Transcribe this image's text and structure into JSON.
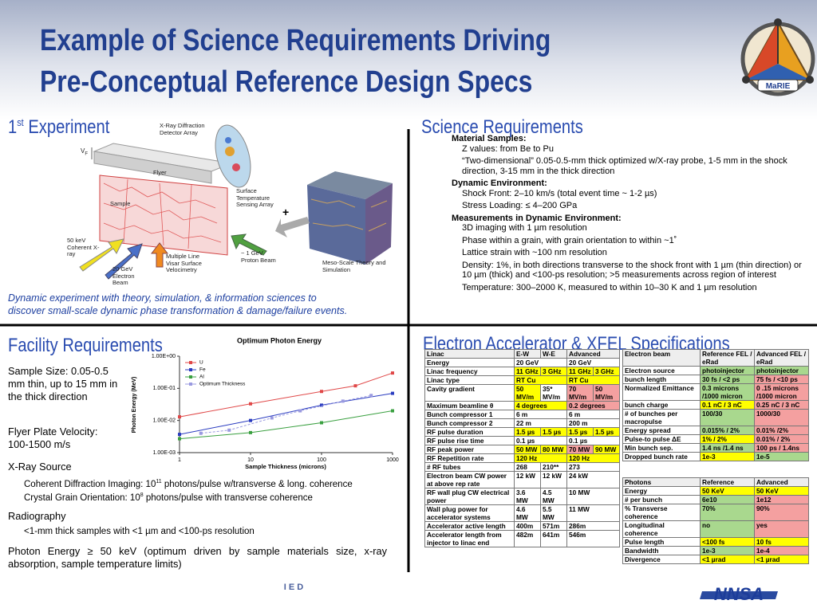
{
  "header": {
    "title_line1": "Example of Science Requirements Driving",
    "title_line2": "Pre-Conceptual Reference Design Specs",
    "logo_text": "MaRIE"
  },
  "experiment": {
    "title": {
      "main": "1",
      "sup": "st",
      "rest": " Experiment"
    },
    "vf": {
      "main": "V",
      "sub": "F"
    },
    "plus": "+",
    "labels": [
      "X-Ray Diffraction Detector Array",
      "Flyer",
      "Sample",
      "Surface Temperature Sensing Array",
      "50 keV Coherent X-ray",
      "20 GeV Electron Beam",
      "Multiple Line Visar Surface Velocimetry",
      "~ 1 GeV Proton Beam",
      "Meso-Scale Theory and Simulation"
    ],
    "caption": [
      "Dynamic experiment with theory, simulation, & information sciences to",
      "discover small-scale dynamic phase transformation & damage/failure events."
    ]
  },
  "science": {
    "title": "Science Requirements",
    "groups": [
      {
        "heading": "Material Samples:",
        "items": [
          "Z values: from Be to Pu",
          "“Two-dimensional” 0.05-0.5-mm thick optimized w/X-ray probe, 1-5 mm in the shock direction, 3-15 mm in the thick direction"
        ]
      },
      {
        "heading": "Dynamic Environment:",
        "items": [
          "Shock Front: 2–10 km/s (total event time ~ 1-2 µs)",
          "Stress Loading: ≤ 4–200 GPa"
        ]
      },
      {
        "heading": "Measurements in Dynamic Environment:",
        "items": [
          "3D imaging with 1 µm resolution",
          "Phase within a grain, with grain orientation to within ~1˚",
          "Lattice strain with ~100 nm resolution",
          "Density: 1%, in both directions transverse to the shock front with 1 µm (thin direction) or 10 µm (thick) and <100-ps resolution; >5 measurements across region of interest",
          "Temperature: 300–2000 K, measured to within 10–30 K and 1 µm resolution"
        ]
      }
    ]
  },
  "facility": {
    "title": "Facility Requirements",
    "sample_size": "Sample Size: 0.05-0.5 mm thin, up to 15 mm in the thick direction",
    "flyer": "Flyer Plate Velocity: 100-1500 m/s",
    "xray": "X-Ray Source",
    "xray_items": [
      {
        "main": "Coherent Diffraction Imaging: 10",
        "sup": "11",
        "rest": " photons/pulse w/transverse & long. coherence"
      },
      {
        "main": "Crystal Grain Orientation: 10",
        "sup": "8",
        "rest": " photons/pulse with transverse coherence"
      }
    ],
    "radiography": "Radiography",
    "radiography_item": "<1-mm thick samples with <1 µm and <100-ps resolution",
    "photon_energy": "Photon Energy ≥ 50 keV (optimum driven by sample materials size, x-ray absorption, sample temperature limits)"
  },
  "chart_data": {
    "type": "line",
    "title": "Optimum Photon Energy",
    "x_label": "Sample Thickness (microns)",
    "y_label": "Photon Energy (MeV)",
    "log_x": true,
    "log_y": true,
    "xlim": [
      1,
      1000
    ],
    "ylim": [
      0.001,
      1
    ],
    "xticks": [
      1,
      10,
      100,
      1000
    ],
    "yticks": [
      {
        "value": 0.001,
        "label": "1.00E-03"
      },
      {
        "value": 0.01,
        "label": "1.00E-02"
      },
      {
        "value": 0.1,
        "label": "1.00E-01"
      },
      {
        "value": 1,
        "label": "1.00E+00"
      }
    ],
    "series": [
      {
        "name": "U",
        "color": "#e04848",
        "x": [
          1,
          10,
          100,
          300,
          1000
        ],
        "values": [
          0.013,
          0.033,
          0.08,
          0.12,
          0.3
        ]
      },
      {
        "name": "Fe",
        "color": "#2a3cc0",
        "x": [
          1,
          10,
          100,
          1000
        ],
        "values": [
          0.0037,
          0.01,
          0.03,
          0.07
        ]
      },
      {
        "name": "Al",
        "color": "#3aa040",
        "x": [
          1,
          10,
          100,
          1000
        ],
        "values": [
          0.0027,
          0.0042,
          0.0085,
          0.02
        ]
      },
      {
        "name": "Optimum Thickness",
        "color": "#9a9ae0",
        "x": [
          2,
          5,
          20,
          50,
          200,
          500
        ],
        "values": [
          0.004,
          0.005,
          0.012,
          0.02,
          0.04,
          0.06
        ]
      }
    ]
  },
  "specs_title": "Electron Accelerator & XFEL Specifications",
  "accelerator_table": {
    "header": [
      "Linac",
      "E-W",
      "W-E",
      "Advanced"
    ],
    "rows": [
      [
        "Energy",
        "20 GeV",
        "20 GeV"
      ],
      [
        "Linac frequency",
        "11 GHz",
        "3 GHz",
        "11 GHz",
        "3 GHz"
      ],
      [
        "Linac type",
        "RT Cu",
        "RT Cu"
      ],
      [
        "Cavity gradient",
        "50 MV/m",
        "35* MV/m",
        "70 MV/m",
        "50 MV/m"
      ],
      [
        "Maximum beamline θ",
        "4 degrees",
        "0.2 degrees"
      ],
      [
        "Bunch compressor 1",
        "6 m",
        "6 m"
      ],
      [
        "Bunch compressor 2",
        "22 m",
        "200 m"
      ],
      [
        "RF pulse duration",
        "1.5 µs",
        "1.5 µs",
        "1.5 µs",
        "1.5 µs"
      ],
      [
        "RF pulse rise time",
        "0.1 µs",
        "0.1 µs"
      ],
      [
        "RF peak power",
        "50 MW",
        "80 MW",
        "70 MW",
        "90 MW"
      ],
      [
        "RF Repetition rate",
        "120 Hz",
        "120 Hz"
      ],
      [
        "# RF tubes",
        "268",
        "210**",
        "273"
      ],
      [
        "Electron beam CW power at above rep rate",
        "12 kW",
        "12 kW",
        "24 kW"
      ],
      [
        "RF wall plug CW electrical power",
        "3.6 MW",
        "4.5 MW",
        "10 MW"
      ],
      [
        "Wall plug power for accelerator systems",
        "4.6 MW",
        "5.5 MW",
        "11 MW"
      ],
      [
        "Accelerator active length",
        "400m",
        "571m",
        "286m"
      ],
      [
        "Accelerator length from injector to linac end",
        "482m",
        "641m",
        "546m"
      ]
    ]
  },
  "electron_table": {
    "header": [
      "Electron beam",
      "Reference FEL / eRad",
      "Advanced FEL / eRad"
    ],
    "rows": [
      [
        "Electron source",
        "photoinjector",
        "photoinjector"
      ],
      [
        "bunch length",
        "30 fs / <2 ps",
        "75 fs / <10 ps"
      ],
      [
        "Normalized Emittance",
        "0.3 microns /1000 micron",
        "0 .15 microns /1000 micron"
      ],
      [
        "bunch charge",
        "0.1 nC / 3 nC",
        "0.25 nC / 3 nC"
      ],
      [
        "# of bunches per macropulse",
        "100/30",
        "1000/30"
      ],
      [
        "Energy spread",
        "0.015% / 2%",
        "0.01% /2%"
      ],
      [
        "Pulse-to pulse ΔE",
        "1% / 2%",
        "0.01% / 2%"
      ],
      [
        "Min bunch sep.",
        "1.4 ns /1.4 ns",
        "100 ps / 1.4ns"
      ],
      [
        "Dropped bunch rate",
        "1e-3",
        "1e-5"
      ]
    ]
  },
  "photon_table": {
    "header": [
      "Photons",
      "Reference",
      "Advanced"
    ],
    "rows": [
      [
        "Energy",
        "50 KeV",
        "50 KeV"
      ],
      [
        "# per bunch",
        "6e10",
        "1e12"
      ],
      [
        "% Transverse coherence",
        "70%",
        "90%"
      ],
      [
        "Longitudinal coherence",
        "no",
        "yes"
      ],
      [
        "Pulse length",
        "<100 fs",
        "10 fs"
      ],
      [
        "Bandwidth",
        "1e-3",
        "1e-4"
      ],
      [
        "Divergence",
        "<1 µrad",
        "<1 µrad"
      ]
    ]
  },
  "footer": {
    "org": "I E D",
    "logo": "NNSA"
  }
}
